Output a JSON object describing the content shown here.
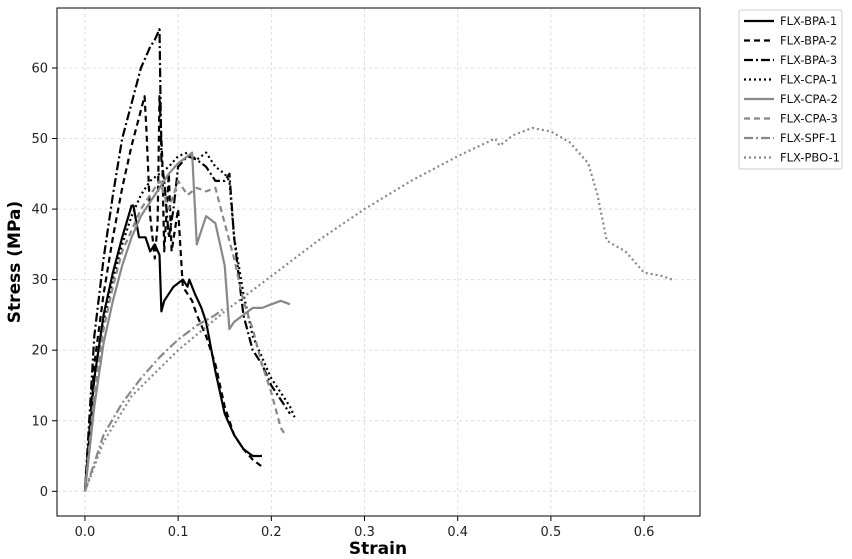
{
  "chart_data": {
    "type": "line",
    "xlabel": "Strain",
    "ylabel": "Stress (MPa)",
    "xlim": [
      -0.03,
      0.66
    ],
    "ylim": [
      -3.5,
      68.5
    ],
    "xticks": [
      "0.0",
      "0.1",
      "0.2",
      "0.3",
      "0.4",
      "0.5",
      "0.6"
    ],
    "yticks": [
      "0",
      "10",
      "20",
      "30",
      "40",
      "50",
      "60"
    ],
    "grid": true,
    "legend_position": "outside-top-right",
    "series": [
      {
        "name": "FLX-BPA-1",
        "color": "#000000",
        "dash": "solid",
        "x": [
          0,
          0.01,
          0.02,
          0.03,
          0.04,
          0.05,
          0.052,
          0.058,
          0.065,
          0.07,
          0.075,
          0.08,
          0.082,
          0.085,
          0.09,
          0.095,
          0.1,
          0.105,
          0.11,
          0.112,
          0.118,
          0.125,
          0.13,
          0.14,
          0.15,
          0.16,
          0.17,
          0.18,
          0.19
        ],
        "y": [
          0,
          16,
          25,
          31,
          36,
          40.5,
          40.5,
          36,
          36,
          34,
          35,
          33.5,
          25.5,
          27,
          28,
          29,
          29.5,
          30,
          29,
          30,
          28,
          26,
          24,
          17,
          11,
          8,
          6,
          5,
          5
        ]
      },
      {
        "name": "FLX-BPA-2",
        "color": "#000000",
        "dash": "6,4",
        "x": [
          0,
          0.01,
          0.02,
          0.03,
          0.04,
          0.05,
          0.06,
          0.064,
          0.066,
          0.07,
          0.075,
          0.078,
          0.08,
          0.083,
          0.085,
          0.09,
          0.093,
          0.1,
          0.105,
          0.11,
          0.115,
          0.12,
          0.13,
          0.14,
          0.15,
          0.16,
          0.17,
          0.18,
          0.19
        ],
        "y": [
          0,
          18,
          28,
          36,
          43,
          49,
          54,
          56,
          51,
          39,
          33,
          38,
          56,
          47,
          34,
          45,
          34,
          40,
          29,
          28,
          27,
          25,
          22,
          18,
          12,
          8,
          6,
          4.5,
          3.5
        ]
      },
      {
        "name": "FLX-BPA-3",
        "color": "#000000",
        "dash": "9,3,2,3",
        "x": [
          0,
          0.01,
          0.02,
          0.03,
          0.04,
          0.05,
          0.06,
          0.07,
          0.075,
          0.08,
          0.082,
          0.085,
          0.09,
          0.095,
          0.1,
          0.11,
          0.12,
          0.13,
          0.14,
          0.15,
          0.155,
          0.16,
          0.17,
          0.18,
          0.19,
          0.2,
          0.21,
          0.22
        ],
        "y": [
          0,
          22,
          33,
          42,
          50,
          55,
          60,
          63,
          64,
          65.5,
          47,
          44,
          36,
          40,
          46,
          47.5,
          47,
          46,
          44,
          44,
          45,
          36,
          25,
          20,
          18,
          15,
          13,
          11
        ]
      },
      {
        "name": "FLX-CPA-1",
        "color": "#000000",
        "dash": "2,3",
        "x": [
          0,
          0.01,
          0.02,
          0.03,
          0.04,
          0.05,
          0.06,
          0.07,
          0.08,
          0.09,
          0.1,
          0.11,
          0.12,
          0.13,
          0.14,
          0.15,
          0.155,
          0.16,
          0.17,
          0.18,
          0.19,
          0.2,
          0.21,
          0.22,
          0.225
        ],
        "y": [
          0,
          16,
          24,
          30,
          35,
          39,
          42,
          44,
          45,
          46,
          47.5,
          48,
          47,
          48,
          46,
          45,
          44,
          36,
          28,
          22,
          19,
          16,
          14,
          12,
          10.5
        ]
      },
      {
        "name": "FLX-CPA-2",
        "color": "#888888",
        "dash": "solid",
        "x": [
          0,
          0.01,
          0.02,
          0.03,
          0.04,
          0.05,
          0.06,
          0.07,
          0.08,
          0.09,
          0.1,
          0.11,
          0.115,
          0.12,
          0.125,
          0.13,
          0.14,
          0.15,
          0.155,
          0.16,
          0.17,
          0.18,
          0.19,
          0.2,
          0.21,
          0.22
        ],
        "y": [
          0,
          12,
          21,
          27,
          32,
          36,
          39,
          41,
          43,
          45,
          46.5,
          47.5,
          48,
          35,
          37,
          39,
          38,
          32,
          23,
          24,
          25,
          26,
          26,
          26.5,
          27,
          26.5
        ]
      },
      {
        "name": "FLX-CPA-3",
        "color": "#888888",
        "dash": "6,4",
        "x": [
          0,
          0.01,
          0.02,
          0.03,
          0.04,
          0.05,
          0.06,
          0.07,
          0.08,
          0.09,
          0.1,
          0.11,
          0.12,
          0.13,
          0.14,
          0.15,
          0.16,
          0.17,
          0.18,
          0.19,
          0.2,
          0.21,
          0.215
        ],
        "y": [
          0,
          14,
          23,
          29,
          34,
          37,
          40,
          42,
          44,
          40,
          44,
          42,
          43,
          42.5,
          43,
          38,
          33,
          27,
          23,
          18,
          14,
          9,
          8
        ]
      },
      {
        "name": "FLX-SPF-1",
        "color": "#888888",
        "dash": "9,3,2,3",
        "x": [
          0,
          0.02,
          0.04,
          0.06,
          0.08,
          0.1,
          0.12,
          0.14,
          0.15
        ],
        "y": [
          0,
          8,
          12.5,
          16,
          19,
          21.5,
          23.5,
          25,
          26
        ]
      },
      {
        "name": "FLX-PBO-1",
        "color": "#888888",
        "dash": "2,3",
        "x": [
          0,
          0.02,
          0.05,
          0.1,
          0.15,
          0.2,
          0.25,
          0.3,
          0.35,
          0.4,
          0.44,
          0.445,
          0.46,
          0.48,
          0.5,
          0.52,
          0.54,
          0.55,
          0.56,
          0.58,
          0.6,
          0.62,
          0.63
        ],
        "y": [
          0,
          7,
          13.5,
          20,
          25.5,
          30.5,
          35.5,
          40,
          44,
          47.5,
          50,
          49,
          50.5,
          51.5,
          51,
          49.5,
          46.5,
          42,
          35.5,
          34,
          31,
          30.5,
          30
        ]
      }
    ]
  }
}
